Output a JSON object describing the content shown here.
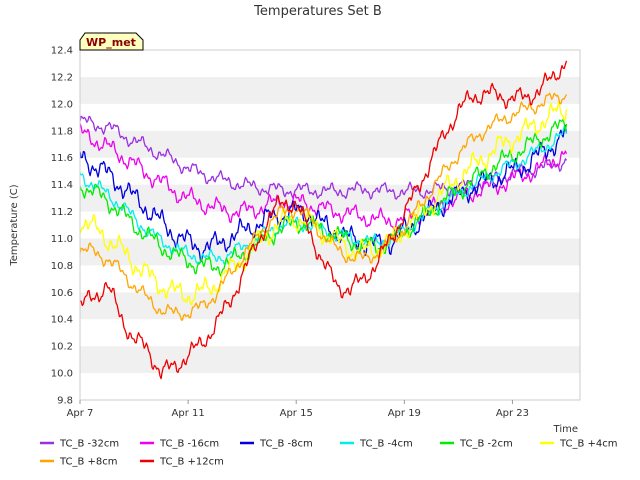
{
  "chart_data": {
    "type": "line",
    "title": "Temperatures Set B",
    "xlabel": "Time",
    "ylabel": "Temperature (C)",
    "badge": "WP_met",
    "xlim": [
      0,
      18.5
    ],
    "ylim": [
      9.8,
      12.4
    ],
    "x_ticks": [
      {
        "x": 0,
        "label": "Apr 7"
      },
      {
        "x": 4,
        "label": "Apr 11"
      },
      {
        "x": 8,
        "label": "Apr 15"
      },
      {
        "x": 12,
        "label": "Apr 19"
      },
      {
        "x": 16,
        "label": "Apr 23"
      }
    ],
    "y_ticks": [
      9.8,
      10.0,
      10.2,
      10.4,
      10.6,
      10.8,
      11.0,
      11.2,
      11.4,
      11.6,
      11.8,
      12.0,
      12.2,
      12.4
    ],
    "grid": "horizontal bands",
    "legend_position": "bottom",
    "x": [
      0,
      0.5,
      1,
      1.5,
      2,
      2.5,
      3,
      3.5,
      4,
      4.5,
      5,
      5.5,
      6,
      6.5,
      7,
      7.5,
      8,
      8.5,
      9,
      9.5,
      10,
      10.5,
      11,
      11.5,
      12,
      12.5,
      13,
      13.5,
      14,
      14.5,
      15,
      15.5,
      16,
      16.5,
      17,
      17.5,
      18
    ],
    "series": [
      {
        "name": "TC_B -32cm",
        "color": "#9b30e0",
        "values": [
          11.87,
          11.85,
          11.83,
          11.78,
          11.72,
          11.68,
          11.62,
          11.58,
          11.52,
          11.48,
          11.45,
          11.42,
          11.4,
          11.38,
          11.37,
          11.36,
          11.36,
          11.36,
          11.35,
          11.35,
          11.36,
          11.36,
          11.36,
          11.35,
          11.35,
          11.35,
          11.36,
          11.37,
          11.38,
          11.4,
          11.42,
          11.45,
          11.48,
          11.5,
          11.52,
          11.55,
          11.58
        ]
      },
      {
        "name": "TC_B -16cm",
        "color": "#ee00ee",
        "values": [
          11.78,
          11.74,
          11.68,
          11.62,
          11.55,
          11.48,
          11.42,
          11.35,
          11.3,
          11.26,
          11.23,
          11.2,
          11.2,
          11.22,
          11.25,
          11.28,
          11.27,
          11.25,
          11.22,
          11.2,
          11.18,
          11.16,
          11.14,
          11.13,
          11.15,
          11.18,
          11.22,
          11.26,
          11.3,
          11.34,
          11.37,
          11.4,
          11.44,
          11.48,
          11.52,
          11.58,
          11.63
        ]
      },
      {
        "name": "TC_B -8cm",
        "color": "#0000dd",
        "values": [
          11.6,
          11.55,
          11.48,
          11.4,
          11.3,
          11.22,
          11.12,
          11.03,
          10.97,
          10.93,
          10.95,
          11.0,
          11.05,
          11.1,
          11.15,
          11.18,
          11.2,
          11.18,
          11.1,
          11.05,
          11.0,
          10.97,
          10.95,
          10.98,
          11.05,
          11.12,
          11.2,
          11.27,
          11.32,
          11.38,
          11.42,
          11.46,
          11.5,
          11.55,
          11.62,
          11.7,
          11.78
        ]
      },
      {
        "name": "TC_B -4cm",
        "color": "#00eeee",
        "values": [
          11.47,
          11.4,
          11.33,
          11.25,
          11.15,
          11.06,
          10.98,
          10.93,
          10.88,
          10.86,
          10.85,
          10.88,
          10.93,
          10.99,
          11.05,
          11.1,
          11.12,
          11.1,
          11.06,
          11.03,
          11.0,
          10.98,
          10.97,
          11.0,
          11.06,
          11.13,
          11.2,
          11.27,
          11.33,
          11.39,
          11.45,
          11.5,
          11.55,
          11.6,
          11.66,
          11.72,
          11.78
        ]
      },
      {
        "name": "TC_B -2cm",
        "color": "#00ee00",
        "values": [
          11.4,
          11.35,
          11.28,
          11.2,
          11.1,
          11.02,
          10.94,
          10.88,
          10.83,
          10.8,
          10.79,
          10.82,
          10.88,
          10.95,
          11.02,
          11.08,
          11.12,
          11.1,
          11.06,
          11.02,
          10.98,
          10.95,
          10.94,
          10.98,
          11.05,
          11.13,
          11.21,
          11.29,
          11.36,
          11.43,
          11.5,
          11.56,
          11.62,
          11.68,
          11.74,
          11.8,
          11.85
        ]
      },
      {
        "name": "TC_B +4cm",
        "color": "#ffff00",
        "values": [
          11.14,
          11.08,
          11.0,
          10.92,
          10.82,
          10.73,
          10.65,
          10.6,
          10.58,
          10.6,
          10.66,
          10.75,
          10.85,
          10.95,
          11.05,
          11.12,
          11.15,
          11.12,
          11.05,
          10.98,
          10.92,
          10.9,
          10.92,
          10.98,
          11.06,
          11.16,
          11.26,
          11.36,
          11.45,
          11.53,
          11.61,
          11.68,
          11.74,
          11.8,
          11.86,
          11.92,
          11.96
        ]
      },
      {
        "name": "TC_B +8cm",
        "color": "#ffa500",
        "values": [
          10.92,
          10.9,
          10.85,
          10.76,
          10.65,
          10.55,
          10.47,
          10.44,
          10.45,
          10.49,
          10.58,
          10.72,
          10.86,
          11.0,
          11.12,
          11.2,
          11.22,
          11.15,
          11.02,
          10.92,
          10.86,
          10.85,
          10.89,
          10.97,
          11.08,
          11.22,
          11.36,
          11.5,
          11.63,
          11.73,
          11.81,
          11.87,
          11.92,
          11.96,
          12.0,
          12.04,
          12.07
        ]
      },
      {
        "name": "TC_B +12cm",
        "color": "#ee0000",
        "values": [
          10.5,
          10.56,
          10.66,
          10.42,
          10.25,
          10.18,
          10.0,
          10.05,
          10.13,
          10.22,
          10.35,
          10.52,
          10.72,
          10.95,
          11.15,
          11.28,
          11.25,
          11.05,
          10.82,
          10.65,
          10.62,
          10.7,
          10.82,
          11.0,
          11.18,
          11.38,
          11.58,
          11.78,
          11.95,
          12.05,
          12.08,
          12.06,
          12.04,
          12.05,
          12.1,
          12.2,
          12.32
        ]
      }
    ]
  }
}
